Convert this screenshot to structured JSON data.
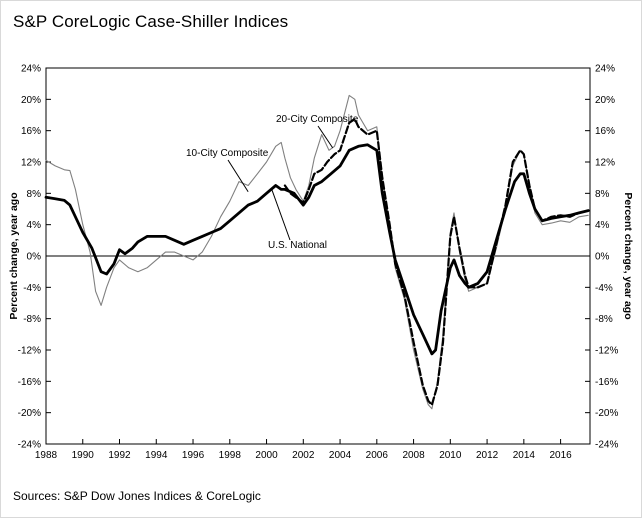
{
  "title": "S&P CoreLogic Case-Shiller Indices",
  "source": "Sources: S&P Dow Jones Indices & CoreLogic",
  "chart_data": {
    "type": "line",
    "title": "S&P CoreLogic Case-Shiller Indices",
    "ylabel": "Percent change, year ago",
    "y2label": "Percent change, year ago",
    "xlim": [
      1988,
      2017.6
    ],
    "ylim": [
      -24,
      24
    ],
    "x_ticks": [
      "1988",
      "1990",
      "1992",
      "1994",
      "1996",
      "1998",
      "2000",
      "2002",
      "2004",
      "2006",
      "2008",
      "2010",
      "2012",
      "2014",
      "2016"
    ],
    "y_ticks": [
      "-24%",
      "-20%",
      "-16%",
      "-12%",
      "-8%",
      "-4%",
      "0%",
      "4%",
      "8%",
      "12%",
      "16%",
      "20%",
      "24%"
    ],
    "zero_line": true,
    "grid": false,
    "series": [
      {
        "name": "10-City Composite",
        "style": "thin-gray",
        "color": "#7f7f7f",
        "points": [
          [
            1988,
            12.2
          ],
          [
            1988.5,
            11.5
          ],
          [
            1989,
            11.0
          ],
          [
            1989.3,
            10.9
          ],
          [
            1989.6,
            8.5
          ],
          [
            1990,
            4.0
          ],
          [
            1990.4,
            0.5
          ],
          [
            1990.7,
            -4.5
          ],
          [
            1991,
            -6.3
          ],
          [
            1991.3,
            -4.0
          ],
          [
            1991.7,
            -1.5
          ],
          [
            1992,
            -0.5
          ],
          [
            1992.5,
            -1.5
          ],
          [
            1993,
            -2.0
          ],
          [
            1993.5,
            -1.5
          ],
          [
            1994,
            -0.5
          ],
          [
            1994.5,
            0.5
          ],
          [
            1995,
            0.5
          ],
          [
            1995.5,
            0.0
          ],
          [
            1996,
            -0.5
          ],
          [
            1996.5,
            0.5
          ],
          [
            1997,
            2.5
          ],
          [
            1997.5,
            5.0
          ],
          [
            1998,
            7.0
          ],
          [
            1998.5,
            9.5
          ],
          [
            1999,
            9.0
          ],
          [
            1999.5,
            10.5
          ],
          [
            2000,
            12.0
          ],
          [
            2000.5,
            14.0
          ],
          [
            2000.8,
            14.5
          ],
          [
            2001,
            12.5
          ],
          [
            2001.3,
            10.0
          ],
          [
            2001.6,
            8.5
          ],
          [
            2002,
            7.0
          ],
          [
            2002.3,
            9.0
          ],
          [
            2002.6,
            12.5
          ],
          [
            2003,
            15.5
          ],
          [
            2003.4,
            13.5
          ],
          [
            2003.7,
            14.0
          ],
          [
            2004,
            16.0
          ],
          [
            2004.5,
            20.5
          ],
          [
            2004.8,
            20.0
          ],
          [
            2005,
            18.0
          ],
          [
            2005.5,
            16.0
          ],
          [
            2006,
            16.5
          ],
          [
            2006.3,
            10.0
          ],
          [
            2006.7,
            4.0
          ],
          [
            2007,
            -1.5
          ],
          [
            2007.5,
            -5.5
          ],
          [
            2008,
            -12.0
          ],
          [
            2008.5,
            -17.0
          ],
          [
            2008.8,
            -19.0
          ],
          [
            2009,
            -19.5
          ],
          [
            2009.3,
            -16.0
          ],
          [
            2009.6,
            -10.0
          ],
          [
            2010,
            3.0
          ],
          [
            2010.2,
            5.5
          ],
          [
            2010.5,
            0.5
          ],
          [
            2010.8,
            -3.0
          ],
          [
            2011,
            -4.5
          ],
          [
            2011.5,
            -4.0
          ],
          [
            2012,
            -3.5
          ],
          [
            2012.5,
            1.0
          ],
          [
            2013,
            6.0
          ],
          [
            2013.4,
            11.5
          ],
          [
            2013.8,
            13.5
          ],
          [
            2014,
            13.0
          ],
          [
            2014.3,
            9.0
          ],
          [
            2014.6,
            5.5
          ],
          [
            2015,
            4.0
          ],
          [
            2015.5,
            4.2
          ],
          [
            2016,
            4.5
          ],
          [
            2016.5,
            4.3
          ],
          [
            2017,
            5.0
          ],
          [
            2017.5,
            5.2
          ]
        ]
      },
      {
        "name": "20-City Composite",
        "style": "dashed-black",
        "color": "#000000",
        "points": [
          [
            2001,
            9.0
          ],
          [
            2001.3,
            8.0
          ],
          [
            2001.6,
            7.5
          ],
          [
            2002,
            6.8
          ],
          [
            2002.3,
            8.5
          ],
          [
            2002.6,
            10.5
          ],
          [
            2003,
            11.0
          ],
          [
            2003.3,
            12.0
          ],
          [
            2003.7,
            13.0
          ],
          [
            2004,
            13.5
          ],
          [
            2004.5,
            17.0
          ],
          [
            2004.8,
            17.5
          ],
          [
            2005,
            16.5
          ],
          [
            2005.5,
            15.5
          ],
          [
            2006,
            16.0
          ],
          [
            2006.3,
            10.0
          ],
          [
            2006.7,
            4.0
          ],
          [
            2007,
            -1.0
          ],
          [
            2007.5,
            -5.0
          ],
          [
            2008,
            -11.0
          ],
          [
            2008.5,
            -16.5
          ],
          [
            2008.8,
            -18.5
          ],
          [
            2009,
            -19.0
          ],
          [
            2009.3,
            -16.5
          ],
          [
            2009.6,
            -11.0
          ],
          [
            2010,
            2.5
          ],
          [
            2010.2,
            5.0
          ],
          [
            2010.5,
            1.0
          ],
          [
            2010.8,
            -2.5
          ],
          [
            2011,
            -4.0
          ],
          [
            2011.5,
            -4.0
          ],
          [
            2012,
            -3.5
          ],
          [
            2012.5,
            1.5
          ],
          [
            2013,
            6.5
          ],
          [
            2013.4,
            12.0
          ],
          [
            2013.8,
            13.5
          ],
          [
            2014,
            13.0
          ],
          [
            2014.3,
            9.0
          ],
          [
            2014.6,
            6.0
          ],
          [
            2015,
            4.5
          ],
          [
            2015.5,
            5.0
          ],
          [
            2016,
            5.2
          ],
          [
            2016.5,
            5.0
          ],
          [
            2017,
            5.5
          ],
          [
            2017.5,
            5.8
          ]
        ]
      },
      {
        "name": "U.S. National",
        "style": "thick-black",
        "color": "#000000",
        "points": [
          [
            1988,
            7.5
          ],
          [
            1988.5,
            7.3
          ],
          [
            1989,
            7.1
          ],
          [
            1989.3,
            6.5
          ],
          [
            1989.6,
            5.0
          ],
          [
            1990,
            3.0
          ],
          [
            1990.5,
            1.0
          ],
          [
            1991,
            -2.0
          ],
          [
            1991.3,
            -2.3
          ],
          [
            1991.7,
            -1.0
          ],
          [
            1992,
            0.8
          ],
          [
            1992.3,
            0.3
          ],
          [
            1992.7,
            1.0
          ],
          [
            1993,
            1.8
          ],
          [
            1993.5,
            2.5
          ],
          [
            1994,
            2.5
          ],
          [
            1994.5,
            2.5
          ],
          [
            1995,
            2.0
          ],
          [
            1995.5,
            1.5
          ],
          [
            1996,
            2.0
          ],
          [
            1996.5,
            2.5
          ],
          [
            1997,
            3.0
          ],
          [
            1997.5,
            3.5
          ],
          [
            1998,
            4.5
          ],
          [
            1998.5,
            5.5
          ],
          [
            1999,
            6.5
          ],
          [
            1999.5,
            7.0
          ],
          [
            2000,
            8.0
          ],
          [
            2000.5,
            9.0
          ],
          [
            2000.8,
            8.5
          ],
          [
            2001,
            8.5
          ],
          [
            2001.5,
            8.0
          ],
          [
            2002,
            6.5
          ],
          [
            2002.3,
            7.5
          ],
          [
            2002.6,
            9.0
          ],
          [
            2003,
            9.5
          ],
          [
            2003.5,
            10.5
          ],
          [
            2004,
            11.5
          ],
          [
            2004.5,
            13.5
          ],
          [
            2005,
            14.0
          ],
          [
            2005.5,
            14.2
          ],
          [
            2006,
            13.5
          ],
          [
            2006.3,
            8.0
          ],
          [
            2006.7,
            3.0
          ],
          [
            2007,
            -0.5
          ],
          [
            2007.5,
            -4.0
          ],
          [
            2008,
            -7.5
          ],
          [
            2008.5,
            -10.0
          ],
          [
            2009,
            -12.5
          ],
          [
            2009.2,
            -12.0
          ],
          [
            2009.5,
            -7.0
          ],
          [
            2010,
            -1.5
          ],
          [
            2010.2,
            -0.5
          ],
          [
            2010.5,
            -2.5
          ],
          [
            2010.8,
            -3.5
          ],
          [
            2011,
            -4.0
          ],
          [
            2011.5,
            -3.5
          ],
          [
            2012,
            -2.0
          ],
          [
            2012.5,
            2.0
          ],
          [
            2013,
            6.0
          ],
          [
            2013.5,
            9.5
          ],
          [
            2013.8,
            10.5
          ],
          [
            2014,
            10.5
          ],
          [
            2014.3,
            8.0
          ],
          [
            2014.6,
            6.0
          ],
          [
            2015,
            4.5
          ],
          [
            2015.5,
            4.8
          ],
          [
            2016,
            5.0
          ],
          [
            2016.5,
            5.2
          ],
          [
            2017,
            5.5
          ],
          [
            2017.5,
            5.8
          ]
        ]
      }
    ],
    "annotations": [
      {
        "text": "20-City Composite",
        "target": [
          2003.6,
          13.8
        ]
      },
      {
        "text": "10-City Composite",
        "target": [
          1999.0,
          8.2
        ]
      },
      {
        "text": "U.S. National",
        "target": [
          2000.3,
          8.4
        ]
      }
    ]
  }
}
